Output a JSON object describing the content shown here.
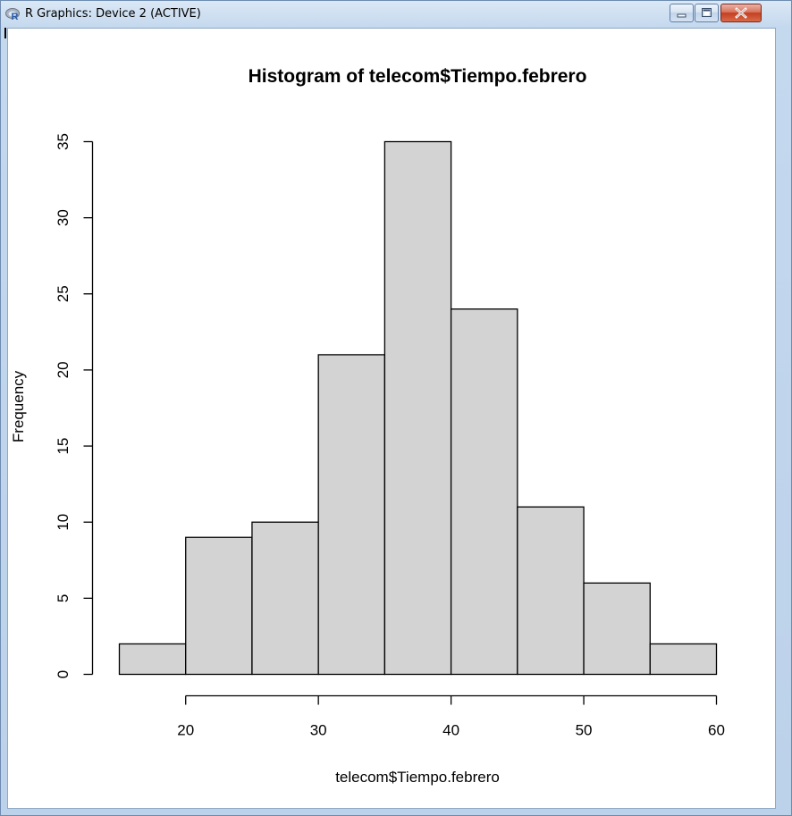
{
  "window": {
    "title": "R Graphics: Device 2 (ACTIVE)",
    "app_icon": "r-logo-icon",
    "controls": [
      "minimize-icon",
      "maximize-icon",
      "close-icon"
    ],
    "close_color": "#c43f22"
  },
  "chart_data": {
    "type": "bar",
    "histogram": true,
    "title": "Histogram of telecom$Tiempo.febrero",
    "xlabel": "telecom$Tiempo.febrero",
    "ylabel": "Frequency",
    "bins": [
      {
        "from": 15,
        "to": 20,
        "count": 2
      },
      {
        "from": 20,
        "to": 25,
        "count": 9
      },
      {
        "from": 25,
        "to": 30,
        "count": 10
      },
      {
        "from": 30,
        "to": 35,
        "count": 21
      },
      {
        "from": 35,
        "to": 40,
        "count": 35
      },
      {
        "from": 40,
        "to": 45,
        "count": 24
      },
      {
        "from": 45,
        "to": 50,
        "count": 11
      },
      {
        "from": 50,
        "to": 55,
        "count": 6
      },
      {
        "from": 55,
        "to": 60,
        "count": 2
      }
    ],
    "xticks": [
      "20",
      "30",
      "40",
      "50",
      "60"
    ],
    "yticks": [
      "0",
      "5",
      "10",
      "15",
      "20",
      "25",
      "30",
      "35"
    ],
    "xlim": [
      15,
      60
    ],
    "ylim": [
      0,
      35
    ],
    "bar_color": "#d3d3d3",
    "grid": false
  }
}
